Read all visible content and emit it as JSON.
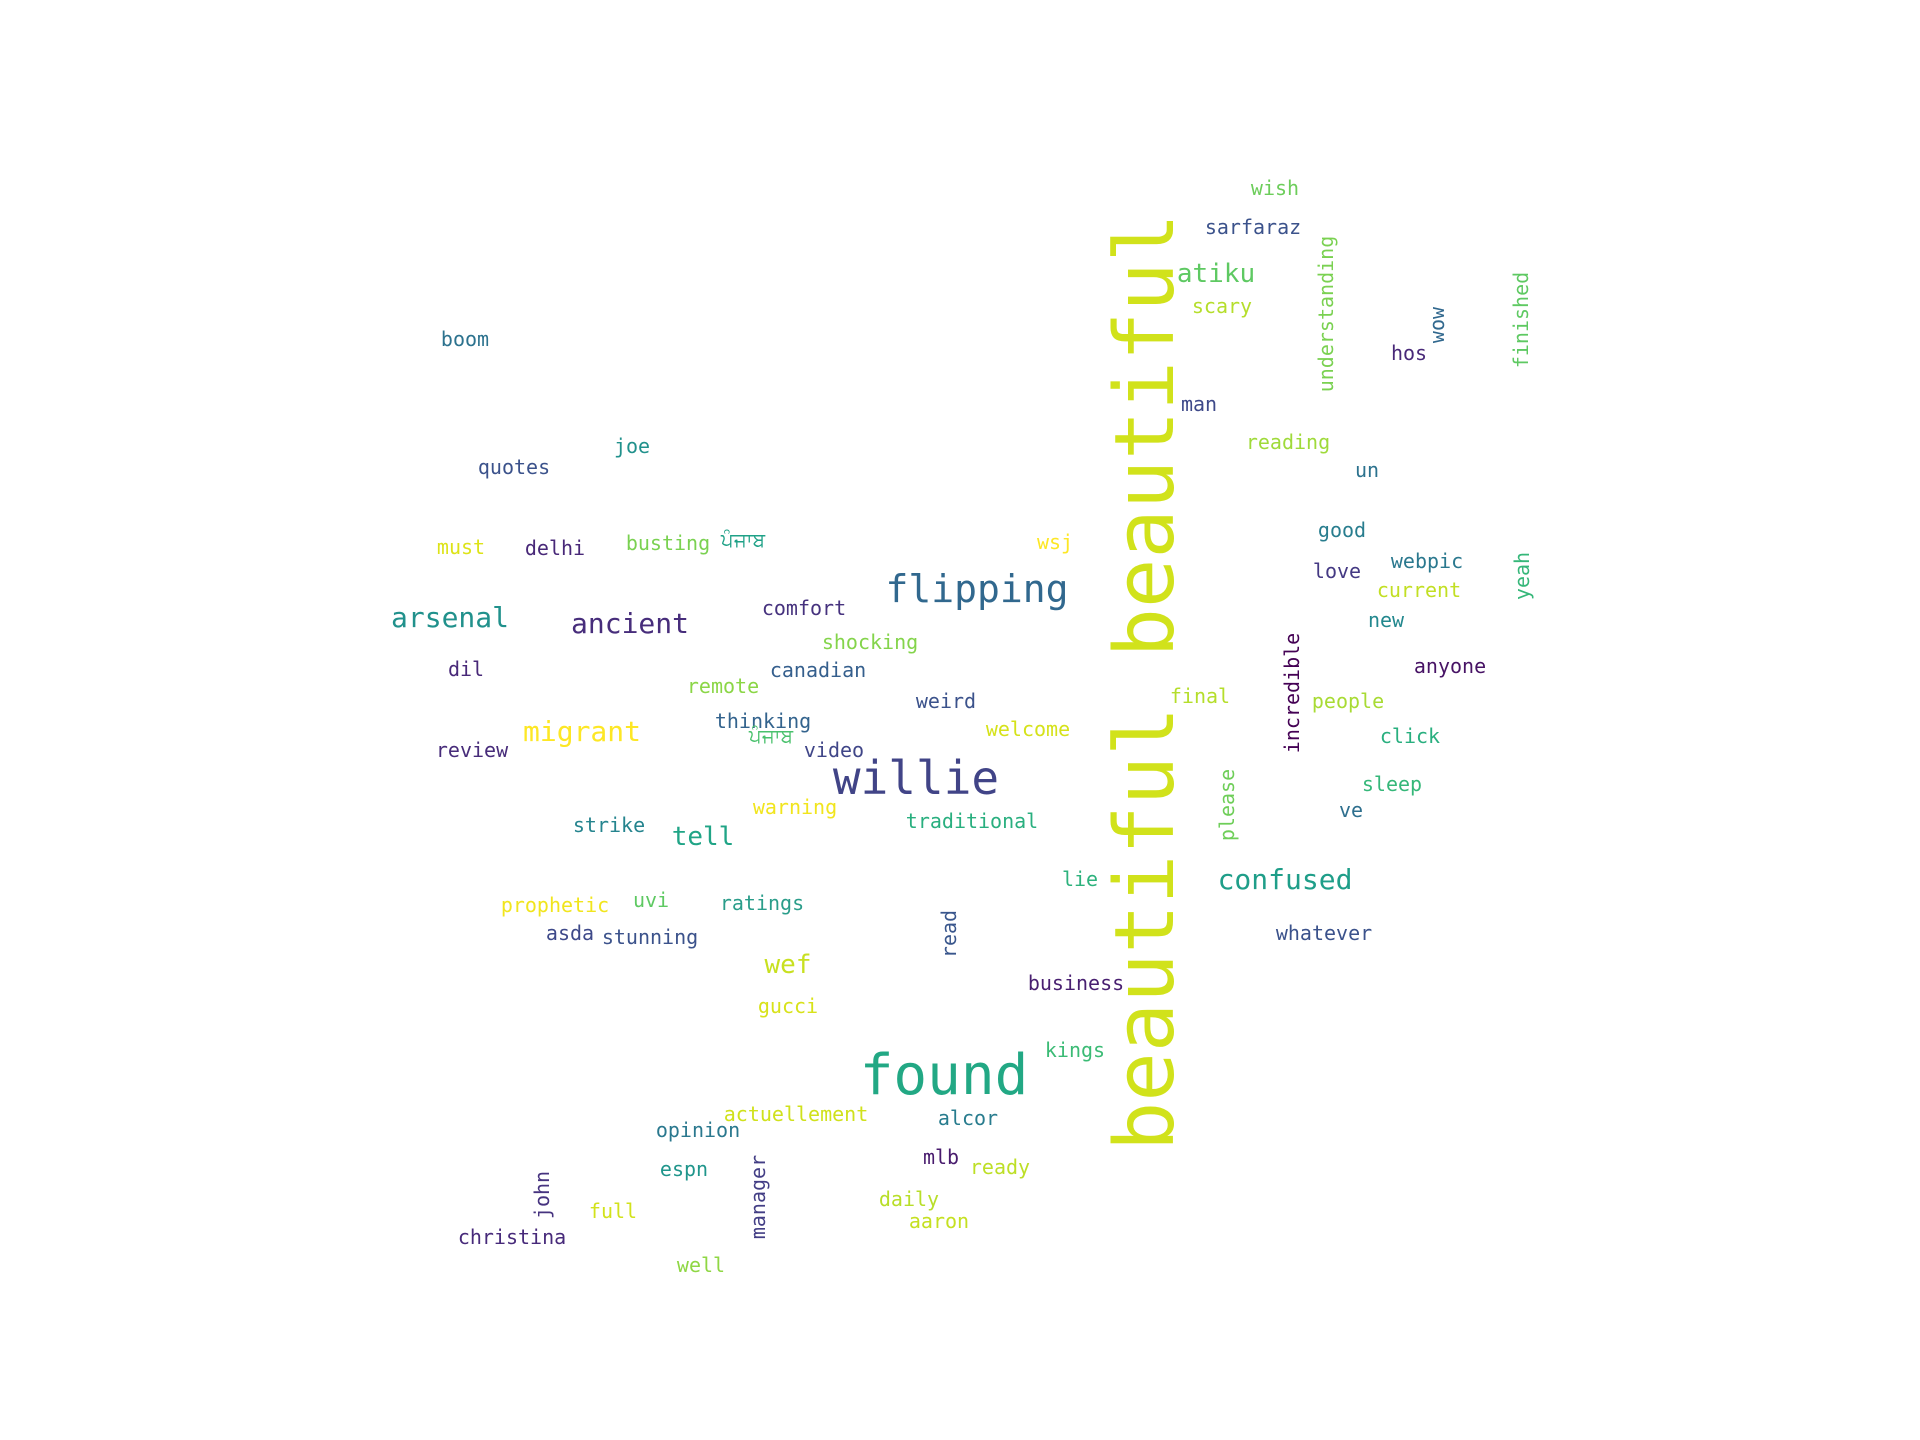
{
  "words": [
    {
      "text": "beautiful beautiful",
      "color": "#d1e21b",
      "vertical": true
    },
    {
      "text": "found",
      "color": "#22a884"
    },
    {
      "text": "willie",
      "color": "#414487"
    },
    {
      "text": "flipping",
      "color": "#31688e"
    },
    {
      "text": "ancient",
      "color": "#472d7b"
    },
    {
      "text": "arsenal",
      "color": "#21918c"
    },
    {
      "text": "migrant",
      "color": "#fde725"
    },
    {
      "text": "confused",
      "color": "#1f9e89"
    },
    {
      "text": "atiku",
      "color": "#5ec962"
    },
    {
      "text": "tell",
      "color": "#20a486"
    },
    {
      "text": "wef",
      "color": "#c8e020"
    },
    {
      "text": "wish",
      "color": "#6ccd5a"
    },
    {
      "text": "sarfaraz",
      "color": "#3b528b"
    },
    {
      "text": "scary",
      "color": "#b5de2b"
    },
    {
      "text": "understanding",
      "color": "#7ad151",
      "vertical": true
    },
    {
      "text": "hos",
      "color": "#482878"
    },
    {
      "text": "wow",
      "color": "#31688e",
      "vertical": true
    },
    {
      "text": "finished",
      "color": "#5ec962",
      "vertical": true
    },
    {
      "text": "man",
      "color": "#3e4989"
    },
    {
      "text": "reading",
      "color": "#9fda3a"
    },
    {
      "text": "un",
      "color": "#2c728e"
    },
    {
      "text": "boom",
      "color": "#2c728e"
    },
    {
      "text": "joe",
      "color": "#21918c"
    },
    {
      "text": "quotes",
      "color": "#3b528b"
    },
    {
      "text": "must",
      "color": "#dde318"
    },
    {
      "text": "delhi",
      "color": "#482878"
    },
    {
      "text": "busting",
      "color": "#7ad151"
    },
    {
      "text": "ਪੰਜਾਬ",
      "color": "#1fa187"
    },
    {
      "text": "wsj",
      "color": "#fde725"
    },
    {
      "text": "good",
      "color": "#287d8e"
    },
    {
      "text": "webpic",
      "color": "#2a788e"
    },
    {
      "text": "yeah",
      "color": "#35b779",
      "vertical": true
    },
    {
      "text": "love",
      "color": "#443983"
    },
    {
      "text": "current",
      "color": "#c2df23"
    },
    {
      "text": "new",
      "color": "#23888e"
    },
    {
      "text": "comfort",
      "color": "#46327e"
    },
    {
      "text": "shocking",
      "color": "#84d44b"
    },
    {
      "text": "incredible",
      "color": "#440154",
      "vertical": true
    },
    {
      "text": "anyone",
      "color": "#471365"
    },
    {
      "text": "dil",
      "color": "#482878"
    },
    {
      "text": "remote",
      "color": "#8bd646"
    },
    {
      "text": "canadian",
      "color": "#355f8d"
    },
    {
      "text": "final",
      "color": "#b5de2b"
    },
    {
      "text": "people",
      "color": "#a8db34"
    },
    {
      "text": "weird",
      "color": "#3b528b"
    },
    {
      "text": "thinking",
      "color": "#33638d"
    },
    {
      "text": "welcome",
      "color": "#d5e21a"
    },
    {
      "text": "click",
      "color": "#29af7f"
    },
    {
      "text": "review",
      "color": "#472c7a"
    },
    {
      "text": "ਪੰਜਾਬ",
      "color": "#4ac16d"
    },
    {
      "text": "video",
      "color": "#404688"
    },
    {
      "text": "please",
      "color": "#6ece58",
      "vertical": true
    },
    {
      "text": "sleep",
      "color": "#35b779"
    },
    {
      "text": "warning",
      "color": "#f1e51d"
    },
    {
      "text": "ve",
      "color": "#2e6f8e"
    },
    {
      "text": "strike",
      "color": "#25848e"
    },
    {
      "text": "traditional",
      "color": "#29af7f"
    },
    {
      "text": "lie",
      "color": "#2db27d"
    },
    {
      "text": "prophetic",
      "color": "#f1e51d"
    },
    {
      "text": "uvi",
      "color": "#5ec962"
    },
    {
      "text": "ratings",
      "color": "#2a9d8a"
    },
    {
      "text": "read",
      "color": "#39568c",
      "vertical": true
    },
    {
      "text": "asda",
      "color": "#3e4989"
    },
    {
      "text": "stunning",
      "color": "#3b528b"
    },
    {
      "text": "whatever",
      "color": "#3b528b"
    },
    {
      "text": "business",
      "color": "#481f70"
    },
    {
      "text": "gucci",
      "color": "#d8e219"
    },
    {
      "text": "kings",
      "color": "#3bbb75"
    },
    {
      "text": "actuellement",
      "color": "#d0e11c"
    },
    {
      "text": "alcor",
      "color": "#287c8e"
    },
    {
      "text": "opinion",
      "color": "#2a788e"
    },
    {
      "text": "mlb",
      "color": "#481b6d"
    },
    {
      "text": "ready",
      "color": "#bddf26"
    },
    {
      "text": "espn",
      "color": "#1f958b"
    },
    {
      "text": "john",
      "color": "#46337f",
      "vertical": true
    },
    {
      "text": "manager",
      "color": "#433e85",
      "vertical": true
    },
    {
      "text": "full",
      "color": "#d2e21b"
    },
    {
      "text": "daily",
      "color": "#b8de29"
    },
    {
      "text": "aaron",
      "color": "#c5e021"
    },
    {
      "text": "christina",
      "color": "#472a7a"
    },
    {
      "text": "well",
      "color": "#8fd744"
    }
  ]
}
